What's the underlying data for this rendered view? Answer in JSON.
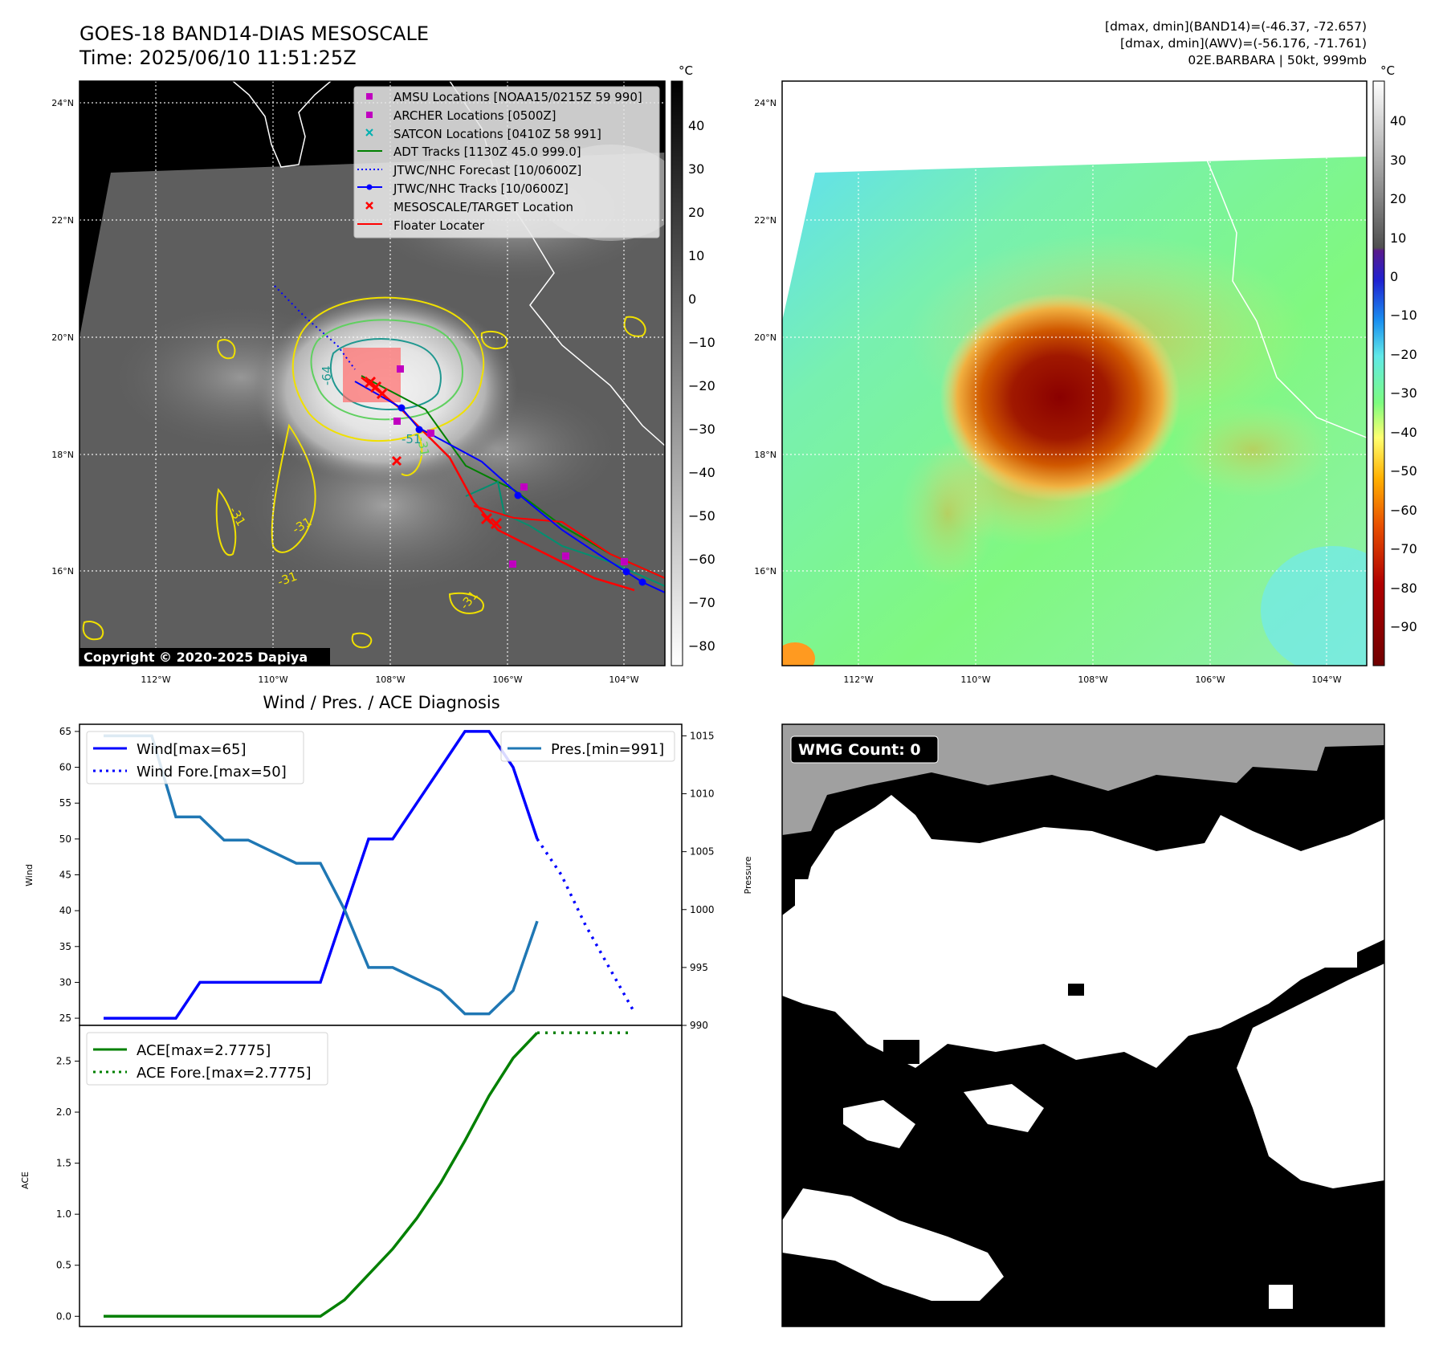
{
  "header": {
    "title": "GOES-18 BAND14-DIAS MESOSCALE",
    "time": "Time: 2025/06/10 11:51:25Z",
    "info_band14": "[dmax, dmin](BAND14)=(-46.37, -72.657)",
    "info_awv": "[dmax, dmin](AWV)=(-56.176, -71.761)",
    "info_storm": "02E.BARBARA | 50kt, 999mb"
  },
  "map": {
    "lat_ticks": [
      "24°N",
      "22°N",
      "20°N",
      "18°N",
      "16°N"
    ],
    "lon_ticks": [
      "112°W",
      "110°W",
      "108°W",
      "106°W",
      "104°W"
    ],
    "copyright": "Copyright © 2020-2025 Dapiya",
    "contour_labels": [
      "-64",
      "-31",
      "-51",
      "-31",
      "-31",
      "-31",
      "-31"
    ],
    "colorbar_unit": "°C",
    "colorbar_ticks_ir": [
      "40",
      "30",
      "20",
      "10",
      "0",
      "−10",
      "−20",
      "−30",
      "−40",
      "−50",
      "−60",
      "−70",
      "−80"
    ],
    "colorbar_ticks_awv": [
      "40",
      "30",
      "20",
      "10",
      "0",
      "−10",
      "−20",
      "−30",
      "−40",
      "−50",
      "−60",
      "−70",
      "−80",
      "−90"
    ],
    "legend": [
      {
        "label": "AMSU Locations [NOAA15/0215Z 59 990]",
        "color": "#c000c0"
      },
      {
        "label": "ARCHER Locations [0500Z]",
        "color": "#c000c0"
      },
      {
        "label": "SATCON Locations [0410Z 58 991]",
        "color": "#00b0b0"
      },
      {
        "label": "ADT Tracks [1130Z 45.0 999.0]",
        "color": "#008000"
      },
      {
        "label": "JTWC/NHC Forecast [10/0600Z]",
        "color": "#0000ff"
      },
      {
        "label": "JTWC/NHC Tracks [10/0600Z]",
        "color": "#0000ff"
      },
      {
        "label": "MESOSCALE/TARGET Location",
        "color": "#ff0000"
      },
      {
        "label": "Floater Locater",
        "color": "#ff0000"
      }
    ]
  },
  "wmg": {
    "label": "WMG Count: 0"
  },
  "chart_data": [
    {
      "type": "line",
      "title": "Wind / Pres. / ACE Diagnosis",
      "ylabel": "Wind",
      "ylabel_right": "Pressure",
      "ylim": [
        24,
        66
      ],
      "ylim_right": [
        990,
        1016
      ],
      "yticks": [
        25,
        30,
        35,
        40,
        45,
        50,
        55,
        60,
        65
      ],
      "yticks_right": [
        990,
        995,
        1000,
        1005,
        1010,
        1015
      ],
      "series": [
        {
          "name": "Wind[max=65]",
          "color": "#0000ff",
          "style": "solid",
          "x": [
            0,
            1,
            2,
            3,
            4,
            5,
            6,
            7,
            8,
            9,
            10,
            11,
            12,
            13,
            14,
            15,
            16,
            17,
            18
          ],
          "values": [
            25,
            25,
            25,
            25,
            30,
            30,
            30,
            30,
            30,
            30,
            40,
            50,
            50,
            55,
            60,
            65,
            65,
            60,
            50
          ]
        },
        {
          "name": "Wind Fore.[max=50]",
          "color": "#0000ff",
          "style": "dotted",
          "x": [
            18,
            19,
            20,
            21,
            22
          ],
          "values": [
            50,
            45,
            38,
            32,
            26
          ]
        },
        {
          "name": "Pres.[min=991]",
          "color": "#1f77b4",
          "style": "solid",
          "axis": "right",
          "x": [
            0,
            1,
            2,
            3,
            4,
            5,
            6,
            7,
            8,
            9,
            10,
            11,
            12,
            13,
            14,
            15,
            16,
            17,
            18
          ],
          "values": [
            1015,
            1015,
            1015,
            1008,
            1008,
            1006,
            1006,
            1005,
            1004,
            1004,
            1000,
            995,
            995,
            994,
            993,
            991,
            991,
            993,
            999
          ]
        }
      ]
    },
    {
      "type": "line",
      "ylabel": "ACE",
      "ylim": [
        -0.1,
        2.85
      ],
      "yticks": [
        0.0,
        0.5,
        1.0,
        1.5,
        2.0,
        2.5
      ],
      "series": [
        {
          "name": "ACE[max=2.7775]",
          "color": "#008000",
          "style": "solid",
          "x": [
            0,
            1,
            2,
            3,
            4,
            5,
            6,
            7,
            8,
            9,
            10,
            11,
            12,
            13,
            14,
            15,
            16,
            17,
            18
          ],
          "values": [
            0,
            0,
            0,
            0,
            0,
            0,
            0,
            0,
            0,
            0,
            0.16,
            0.41,
            0.66,
            0.96,
            1.31,
            1.72,
            2.16,
            2.53,
            2.7775
          ]
        },
        {
          "name": "ACE Fore.[max=2.7775]",
          "color": "#008000",
          "style": "dotted",
          "x": [
            18,
            22
          ],
          "values": [
            2.7775,
            2.7775
          ]
        }
      ]
    }
  ]
}
